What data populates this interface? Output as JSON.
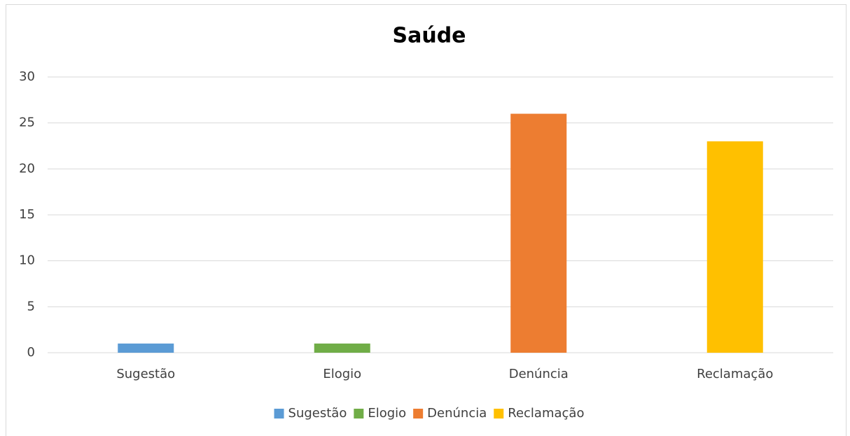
{
  "chart_data": {
    "type": "bar",
    "title": "Saúde",
    "categories": [
      "Sugestão",
      "Elogio",
      "Denúncia",
      "Reclamação"
    ],
    "series": [
      {
        "name": "Sugestão",
        "color": "#5b9bd5",
        "values": [
          1,
          null,
          null,
          null
        ]
      },
      {
        "name": "Elogio",
        "color": "#70ad47",
        "values": [
          null,
          1,
          null,
          null
        ]
      },
      {
        "name": "Denúncia",
        "color": "#ed7d31",
        "values": [
          null,
          null,
          26,
          null
        ]
      },
      {
        "name": "Reclamação",
        "color": "#ffc000",
        "values": [
          null,
          null,
          null,
          23
        ]
      }
    ],
    "ylim": [
      0,
      30
    ],
    "yticks": [
      0,
      5,
      10,
      15,
      20,
      25,
      30
    ],
    "grid": true,
    "legend": "bottom"
  }
}
